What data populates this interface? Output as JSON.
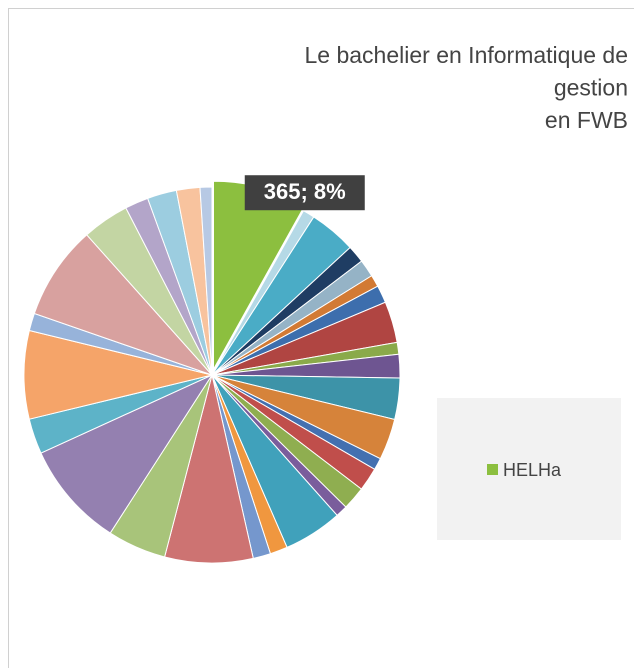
{
  "chart_data": {
    "type": "pie",
    "title": [
      "Le bachelier en Informatique de",
      "gestion",
      "en FWB"
    ],
    "categories": [
      "HELHa",
      null,
      null,
      null,
      null,
      null,
      null,
      null,
      null,
      null,
      null,
      null,
      null,
      null,
      null,
      null,
      null,
      null,
      null,
      null,
      null,
      null,
      null,
      null,
      null,
      null,
      null,
      null,
      null,
      null,
      null
    ],
    "values": [
      365,
      46,
      182,
      68,
      68,
      46,
      68,
      160,
      46,
      91,
      160,
      160,
      46,
      91,
      91,
      46,
      228,
      68,
      68,
      342,
      228,
      410,
      137,
      342,
      68,
      365,
      182,
      91,
      114,
      91,
      46
    ],
    "value_labels": [
      "365; 8%",
      null,
      null,
      null,
      null,
      null,
      null,
      null,
      null,
      null,
      null,
      null,
      null,
      null,
      null,
      null,
      null,
      null,
      null,
      null,
      null,
      null,
      null,
      null,
      null,
      null,
      null,
      null,
      null,
      null,
      null
    ],
    "colors": [
      "#8cbf3f",
      "#b5d9e6",
      "#4aacc6",
      "#1f3d63",
      "#95b3c6",
      "#d27a34",
      "#3d6ead",
      "#b04542",
      "#8aaa4a",
      "#6e5591",
      "#3d93a8",
      "#d6833a",
      "#4470b0",
      "#c04e4b",
      "#8fae50",
      "#7a5d9c",
      "#40a1bb",
      "#f0973f",
      "#7597cd",
      "#cd7372",
      "#a8c47a",
      "#9480b0",
      "#5db3c8",
      "#f5a469",
      "#97b3da",
      "#d8a19f",
      "#c3d5a3",
      "#b3a5c9",
      "#9ccde0",
      "#f8c39e",
      "#b7c9e4"
    ],
    "legend": "right"
  }
}
